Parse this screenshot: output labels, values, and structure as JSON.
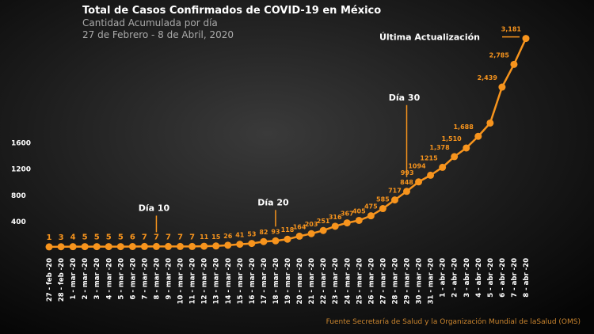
{
  "chart_data": {
    "type": "line",
    "title": "Total de Casos Confirmados de COVID-19 en México",
    "subtitle": "Cantidad Acumulada por día",
    "date_range": "27 de Febrero - 8 de Abril, 2020",
    "source": "Fuente Secretaría de Salud y la Organización Mundial de laSalud (OMS)",
    "categories": [
      "27 - feb -20",
      "28 - feb -20",
      "1 - mar -20",
      "2 - mar -20",
      "3 - mar -20",
      "4 - mar -20",
      "5 - mar -20",
      "6 - mar -20",
      "7 - mar -20",
      "8 - mar -20",
      "9 - mar -20",
      "10 - mar -20",
      "11 - mar -20",
      "12 - mar -20",
      "13 - mar -20",
      "14 - mar -20",
      "15 - mar -20",
      "16 - mar -20",
      "17 - mar -20",
      "18 - mar -20",
      "19 - mar -20",
      "20 - mar -20",
      "21 - mar -20",
      "22 - mar -20",
      "23 - mar -20",
      "24 - mar -20",
      "25 - mar -20",
      "26 - mar -20",
      "27 - mar -20",
      "28 - mar -20",
      "29 - mar -20",
      "30 - mar -20",
      "31 - mar -20",
      "1 - abr -20",
      "2 - abr -20",
      "3 - abr -20",
      "4 - abr -20",
      "5 - abr -20",
      "6 - abr -20",
      "7 - abr -20",
      "8 - abr -20"
    ],
    "values": [
      1,
      3,
      4,
      5,
      5,
      5,
      5,
      6,
      7,
      7,
      7,
      7,
      7,
      11,
      15,
      26,
      41,
      53,
      82,
      93,
      118,
      164,
      203,
      251,
      316,
      367,
      405,
      475,
      585,
      717,
      848,
      993,
      1094,
      1215,
      1378,
      1510,
      1688,
      1890,
      2439,
      2785,
      3181
    ],
    "value_labels": [
      "1",
      "3",
      "4",
      "5",
      "5",
      "5",
      "5",
      "6",
      "7",
      "7",
      "7",
      "7",
      "7",
      "11",
      "15",
      "26",
      "41",
      "53",
      "82",
      "93",
      "118",
      "164",
      "203",
      "251",
      "316",
      "367",
      "405",
      "475",
      "585",
      "717",
      "848",
      "993",
      "1094",
      "1215",
      "1,378",
      "1,510",
      "1,688",
      null,
      "2,439",
      "2,785",
      "3,181"
    ],
    "color": "#f7941d",
    "ylim": [
      0,
      3200
    ],
    "yticks": [
      400,
      800,
      1200,
      1600
    ],
    "annotations": [
      {
        "text": "Día 10",
        "category": "8 - mar -20"
      },
      {
        "text": "Día 20",
        "category": "18 - mar -20"
      },
      {
        "text": "Día 30",
        "category": "29 - mar -20"
      },
      {
        "text": "Última Actualización",
        "category": "8 - abr -20"
      }
    ]
  }
}
